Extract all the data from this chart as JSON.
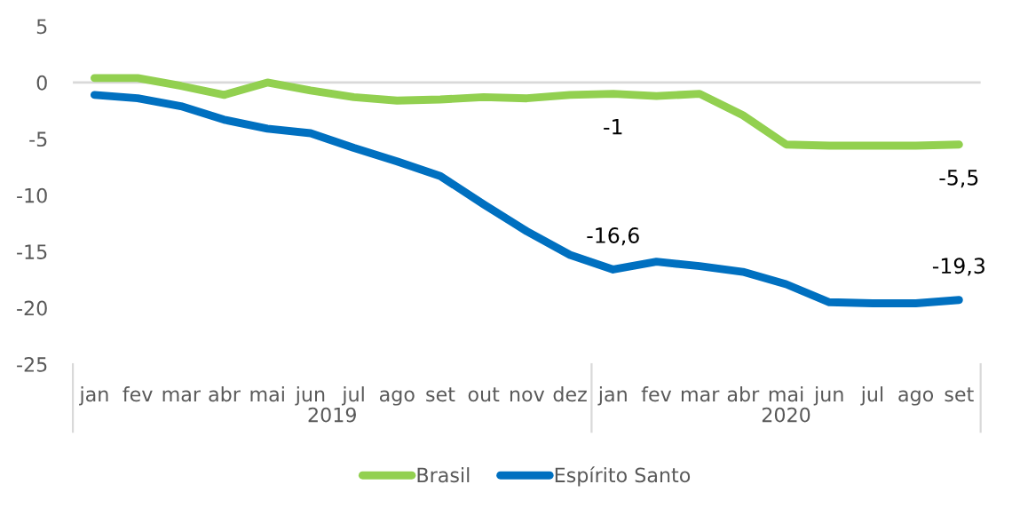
{
  "chart_data": {
    "type": "line",
    "categories": [
      "jan",
      "fev",
      "mar",
      "abr",
      "mai",
      "jun",
      "jul",
      "ago",
      "set",
      "out",
      "nov",
      "dez",
      "jan",
      "fev",
      "mar",
      "abr",
      "mai",
      "jun",
      "jul",
      "ago",
      "set"
    ],
    "annotations": [
      "2019",
      "2020"
    ],
    "series": [
      {
        "name": "Brasil",
        "color": "#92d050",
        "values": [
          0.4,
          0.4,
          -0.3,
          -1.1,
          0,
          -0.7,
          -1.3,
          -1.6,
          -1.5,
          -1.3,
          -1.4,
          -1.1,
          -1,
          -1.2,
          -1.0,
          -2.9,
          -5.5,
          -5.6,
          -5.6,
          -5.6,
          -5.5
        ],
        "value_labels": [
          null,
          null,
          null,
          null,
          null,
          null,
          null,
          null,
          null,
          null,
          null,
          null,
          "-1",
          null,
          null,
          null,
          null,
          null,
          null,
          null,
          "-5,5"
        ]
      },
      {
        "name": "Espírito Santo",
        "color": "#0070c0",
        "values": [
          -1.1,
          -1.4,
          -2.1,
          -3.3,
          -4.1,
          -4.5,
          -5.8,
          -7.0,
          -8.3,
          -10.8,
          -13.2,
          -15.3,
          -16.6,
          -15.9,
          -16.3,
          -16.8,
          -17.9,
          -19.5,
          -19.6,
          -19.6,
          -19.3
        ],
        "value_labels": [
          null,
          null,
          null,
          null,
          null,
          null,
          null,
          null,
          null,
          null,
          null,
          null,
          "-16,6",
          null,
          null,
          null,
          null,
          null,
          null,
          null,
          "-19,3"
        ]
      }
    ],
    "ylim": [
      -25,
      5
    ],
    "yticks": [
      -25,
      -20,
      -15,
      -10,
      -5,
      0,
      5
    ],
    "ref_lines": [
      {
        "axis": "y",
        "value": 0,
        "color": "#d9d9d9"
      }
    ],
    "grid": false,
    "legend": "bottom",
    "marker": "none",
    "line_style": "solid"
  }
}
